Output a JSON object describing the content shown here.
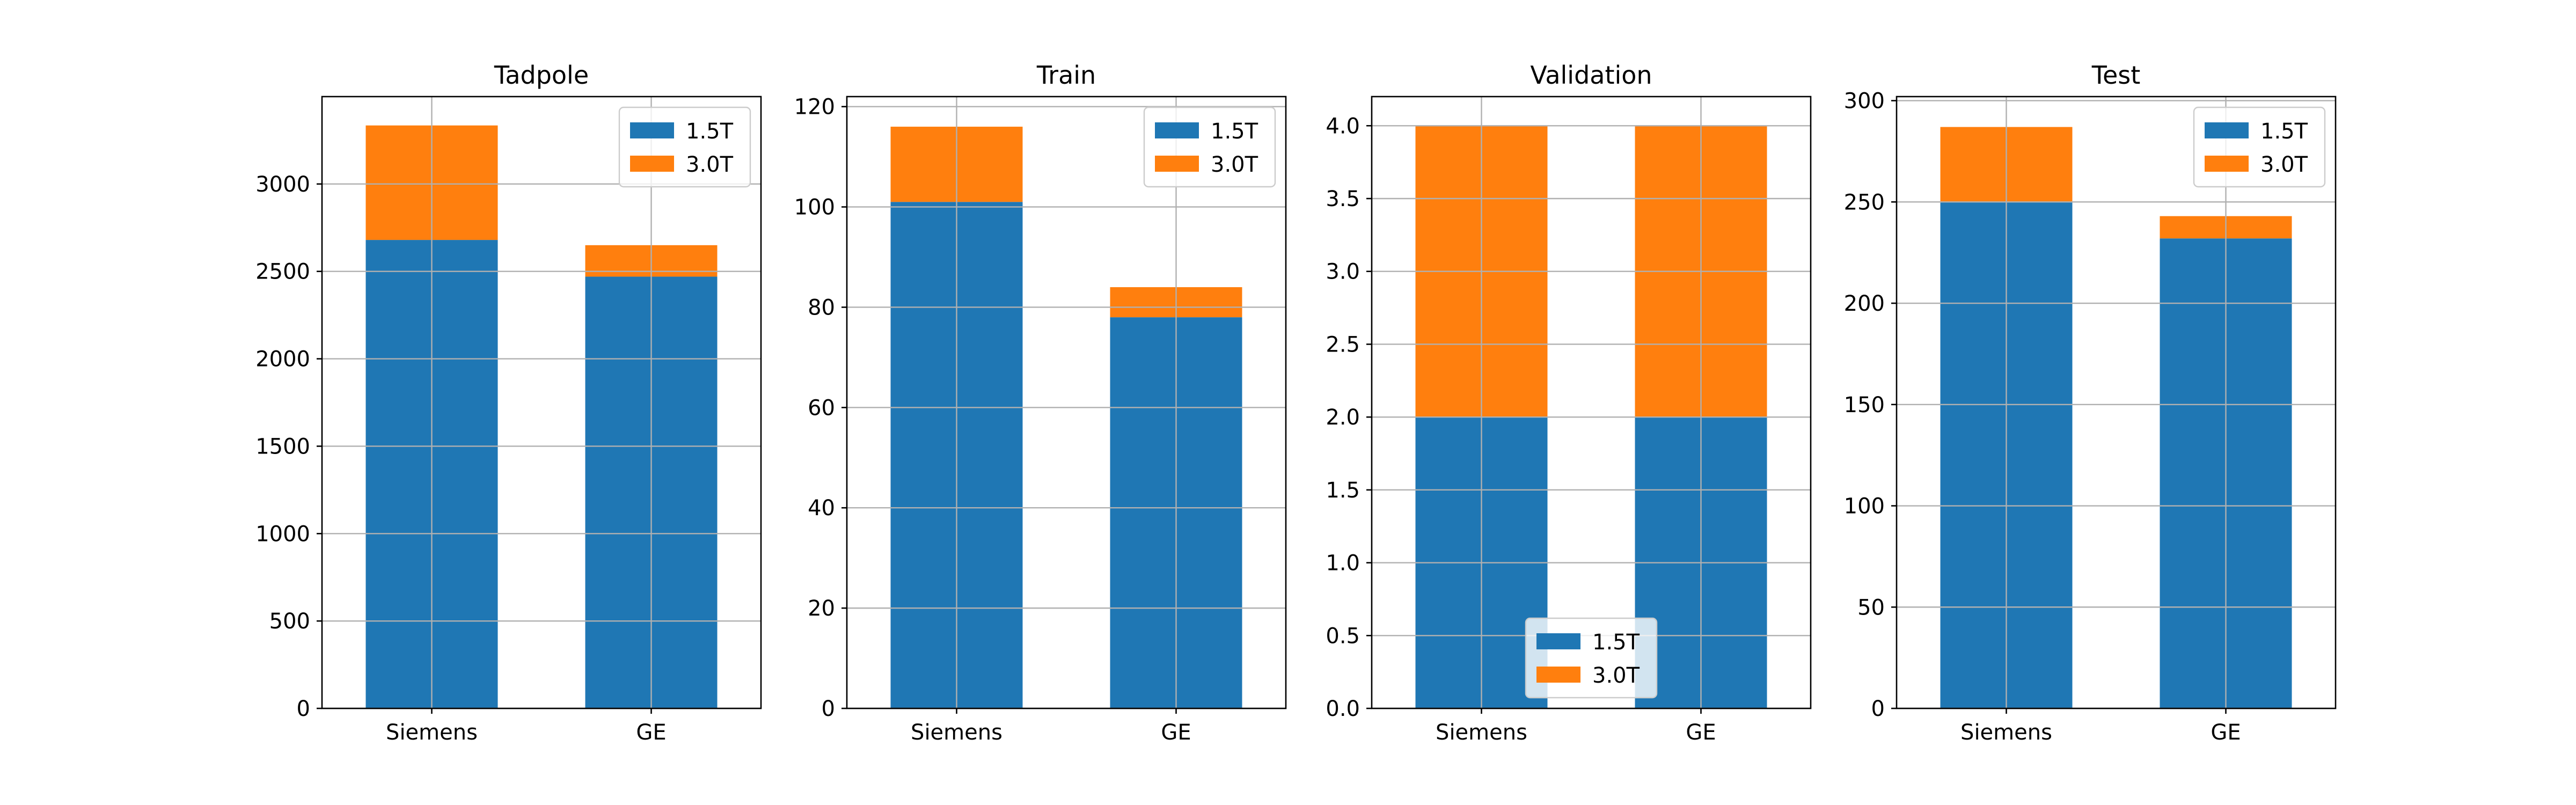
{
  "colors": {
    "series_1_5T": "#1f77b4",
    "series_3_0T": "#ff7f0e",
    "grid": "#b0b0b0",
    "axis": "#000000"
  },
  "chart_data": [
    {
      "type": "bar",
      "stacked": true,
      "title": "Tadpole",
      "categories": [
        "Siemens",
        "GE"
      ],
      "series": [
        {
          "name": "1.5T",
          "values": [
            2680,
            2470
          ]
        },
        {
          "name": "3.0T",
          "values": [
            655,
            180
          ]
        }
      ],
      "ylim": [
        0,
        3500
      ],
      "yticks": [
        0,
        500,
        1000,
        1500,
        2000,
        2500,
        3000
      ],
      "ytick_labels": [
        "0",
        "500",
        "1000",
        "1500",
        "2000",
        "2500",
        "3000"
      ],
      "grid": true,
      "legend": "upper right"
    },
    {
      "type": "bar",
      "stacked": true,
      "title": "Train",
      "categories": [
        "Siemens",
        "GE"
      ],
      "series": [
        {
          "name": "1.5T",
          "values": [
            101,
            78
          ]
        },
        {
          "name": "3.0T",
          "values": [
            15,
            6
          ]
        }
      ],
      "ylim": [
        0,
        122
      ],
      "yticks": [
        0,
        20,
        40,
        60,
        80,
        100,
        120
      ],
      "ytick_labels": [
        "0",
        "20",
        "40",
        "60",
        "80",
        "100",
        "120"
      ],
      "grid": true,
      "legend": "upper right"
    },
    {
      "type": "bar",
      "stacked": true,
      "title": "Validation",
      "categories": [
        "Siemens",
        "GE"
      ],
      "series": [
        {
          "name": "1.5T",
          "values": [
            2,
            2
          ]
        },
        {
          "name": "3.0T",
          "values": [
            2,
            2
          ]
        }
      ],
      "ylim": [
        0,
        4.2
      ],
      "yticks": [
        0,
        0.5,
        1,
        1.5,
        2,
        2.5,
        3,
        3.5,
        4
      ],
      "ytick_labels": [
        "0.0",
        "0.5",
        "1.0",
        "1.5",
        "2.0",
        "2.5",
        "3.0",
        "3.5",
        "4.0"
      ],
      "grid": true,
      "legend": "lower center"
    },
    {
      "type": "bar",
      "stacked": true,
      "title": "Test",
      "categories": [
        "Siemens",
        "GE"
      ],
      "series": [
        {
          "name": "1.5T",
          "values": [
            250,
            232
          ]
        },
        {
          "name": "3.0T",
          "values": [
            37,
            11
          ]
        }
      ],
      "ylim": [
        0,
        302
      ],
      "yticks": [
        0,
        50,
        100,
        150,
        200,
        250,
        300
      ],
      "ytick_labels": [
        "0",
        "50",
        "100",
        "150",
        "200",
        "250",
        "300"
      ],
      "grid": true,
      "legend": "upper right"
    }
  ]
}
